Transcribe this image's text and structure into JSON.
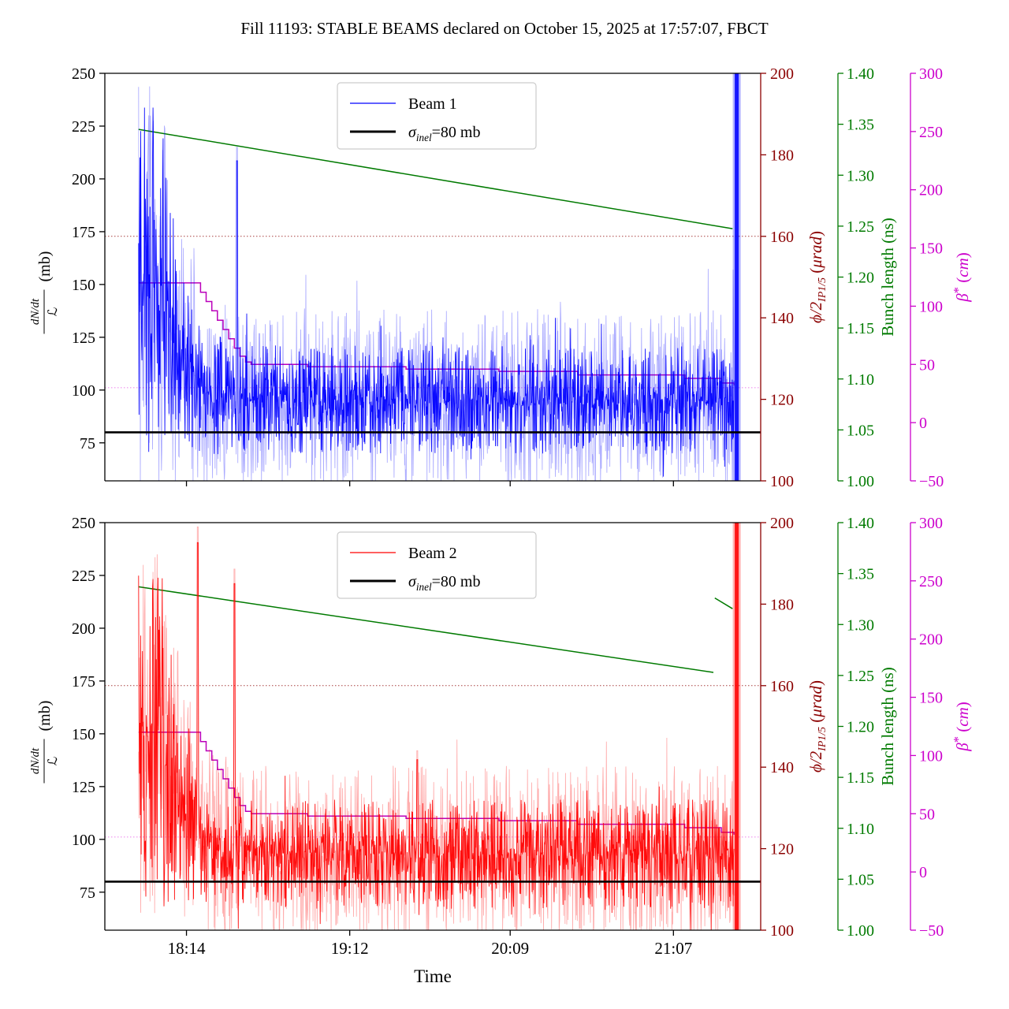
{
  "title": "Fill 11193: STABLE BEAMS declared on October 15, 2025 at 17:57:07, FBCT",
  "xlabel": "Time",
  "colors": {
    "beam1": "#0000ff",
    "beam2": "#ff0000",
    "sigma": "#000000",
    "phi_axis": "#8b0000",
    "bunch_axis": "#007a00",
    "beta_axis": "#cc00cc"
  },
  "chart_data": [
    {
      "type": "line",
      "name": "beam1-panel",
      "x_axis": {
        "start_time": "17:45",
        "lim_minutes": [
          0,
          233
        ],
        "ticks": [
          {
            "t": 29,
            "label": "18:14"
          },
          {
            "t": 87,
            "label": "19:12"
          },
          {
            "t": 144,
            "label": "20:09"
          },
          {
            "t": 202,
            "label": "21:07"
          }
        ],
        "show_tick_labels": false
      },
      "left_axis": {
        "lim": [
          57,
          250
        ],
        "ticks": [
          {
            "v": 75,
            "label": "75"
          },
          {
            "v": 100,
            "label": "100"
          },
          {
            "v": 125,
            "label": "125"
          },
          {
            "v": 150,
            "label": "150"
          },
          {
            "v": 175,
            "label": "175"
          },
          {
            "v": 200,
            "label": "200"
          },
          {
            "v": 225,
            "label": "225"
          },
          {
            "v": 250,
            "label": "250"
          }
        ],
        "label": {
          "numerator": "dN/dt",
          "denominator": "ℒ",
          "unit": "(mb)"
        }
      },
      "phi_axis": {
        "lim": [
          100,
          200
        ],
        "color": "#8b0000",
        "ticks": [
          {
            "v": 100,
            "label": "100"
          },
          {
            "v": 120,
            "label": "120"
          },
          {
            "v": 140,
            "label": "140"
          },
          {
            "v": 160,
            "label": "160"
          },
          {
            "v": 180,
            "label": "180"
          },
          {
            "v": 200,
            "label": "200"
          }
        ],
        "label_parts": [
          [
            "ϕ/2",
            "i"
          ],
          [
            "IP1/5",
            "sub"
          ],
          [
            " (",
            "n"
          ],
          [
            "μrad",
            "i"
          ],
          [
            ")",
            "n"
          ]
        ],
        "crossing_angle": 160
      },
      "bunch_axis": {
        "lim": [
          1.0,
          1.4
        ],
        "color": "#007a00",
        "ticks": [
          {
            "v": 1.0,
            "label": "1.00"
          },
          {
            "v": 1.05,
            "label": "1.05"
          },
          {
            "v": 1.1,
            "label": "1.10"
          },
          {
            "v": 1.15,
            "label": "1.15"
          },
          {
            "v": 1.2,
            "label": "1.20"
          },
          {
            "v": 1.25,
            "label": "1.25"
          },
          {
            "v": 1.3,
            "label": "1.30"
          },
          {
            "v": 1.35,
            "label": "1.35"
          },
          {
            "v": 1.4,
            "label": "1.40"
          }
        ],
        "label_parts": [
          [
            "Bunch length (ns)",
            "n"
          ]
        ],
        "segments": [
          [
            [
              12,
              1.345
            ],
            [
              223,
              1.2475
            ]
          ]
        ]
      },
      "beta_axis": {
        "lim": [
          -50,
          300
        ],
        "color": "#cc00cc",
        "dotted_color": "#ef8fef",
        "ticks": [
          {
            "v": -50,
            "label": "−50"
          },
          {
            "v": 0,
            "label": "0"
          },
          {
            "v": 50,
            "label": "50"
          },
          {
            "v": 100,
            "label": "100"
          },
          {
            "v": 150,
            "label": "150"
          },
          {
            "v": 200,
            "label": "200"
          },
          {
            "v": 250,
            "label": "250"
          },
          {
            "v": 300,
            "label": "300"
          }
        ],
        "label_parts": [
          [
            "β",
            "i"
          ],
          [
            "*",
            "sup"
          ],
          [
            " (",
            "n"
          ],
          [
            "cm",
            "i"
          ],
          [
            ")",
            "n"
          ]
        ],
        "leveling_target": 30,
        "steps": [
          [
            12,
            120
          ],
          [
            32,
            120
          ],
          [
            34,
            112
          ],
          [
            36,
            104
          ],
          [
            38,
            96
          ],
          [
            40,
            88
          ],
          [
            42,
            80
          ],
          [
            44,
            72
          ],
          [
            46,
            64
          ],
          [
            48,
            57
          ],
          [
            50,
            52
          ],
          [
            52,
            50
          ],
          [
            70,
            50
          ],
          [
            72,
            48
          ],
          [
            105,
            48
          ],
          [
            107,
            46
          ],
          [
            138,
            46
          ],
          [
            140,
            44
          ],
          [
            166,
            44
          ],
          [
            168,
            41
          ],
          [
            204,
            41
          ],
          [
            206,
            38
          ],
          [
            217,
            38
          ],
          [
            219,
            34
          ],
          [
            223.5,
            32
          ]
        ]
      },
      "sigma_line": {
        "value": 80,
        "color": "#000000"
      },
      "beam": {
        "name": "Beam 1",
        "color": "#0000ff",
        "seed": 11193,
        "t_range": [
          12,
          223.6
        ],
        "envelope": [
          [
            12,
            152,
            100,
            85
          ],
          [
            20,
            150,
            100,
            82
          ],
          [
            24,
            128,
            72,
            55
          ],
          [
            30,
            110,
            55,
            42
          ],
          [
            36,
            98,
            46,
            30
          ],
          [
            50,
            96,
            43,
            26
          ],
          [
            223.6,
            95,
            43,
            25
          ]
        ],
        "spikes": [
          [
            47,
            215
          ]
        ],
        "end_bar": {
          "t": 224.5,
          "half_width_min": 0.7
        }
      },
      "legend": [
        {
          "kind": "beam",
          "label": "Beam 1"
        },
        {
          "kind": "sigma",
          "parts": [
            [
              "σ",
              "i"
            ],
            [
              "inel",
              "sub"
            ],
            [
              "=80 mb",
              "n"
            ]
          ]
        }
      ]
    },
    {
      "type": "line",
      "name": "beam2-panel",
      "x_axis": {
        "start_time": "17:45",
        "lim_minutes": [
          0,
          233
        ],
        "ticks": [
          {
            "t": 29,
            "label": "18:14"
          },
          {
            "t": 87,
            "label": "19:12"
          },
          {
            "t": 144,
            "label": "20:09"
          },
          {
            "t": 202,
            "label": "21:07"
          }
        ],
        "show_tick_labels": true
      },
      "left_axis": {
        "lim": [
          57,
          250
        ],
        "ticks": [
          {
            "v": 75,
            "label": "75"
          },
          {
            "v": 100,
            "label": "100"
          },
          {
            "v": 125,
            "label": "125"
          },
          {
            "v": 150,
            "label": "150"
          },
          {
            "v": 175,
            "label": "175"
          },
          {
            "v": 200,
            "label": "200"
          },
          {
            "v": 225,
            "label": "225"
          },
          {
            "v": 250,
            "label": "250"
          }
        ],
        "label": {
          "numerator": "dN/dt",
          "denominator": "ℒ",
          "unit": "(mb)"
        }
      },
      "phi_axis": {
        "lim": [
          100,
          200
        ],
        "color": "#8b0000",
        "ticks": [
          {
            "v": 100,
            "label": "100"
          },
          {
            "v": 120,
            "label": "120"
          },
          {
            "v": 140,
            "label": "140"
          },
          {
            "v": 160,
            "label": "160"
          },
          {
            "v": 180,
            "label": "180"
          },
          {
            "v": 200,
            "label": "200"
          }
        ],
        "label_parts": [
          [
            "ϕ/2",
            "i"
          ],
          [
            "IP1/5",
            "sub"
          ],
          [
            " (",
            "n"
          ],
          [
            "μrad",
            "i"
          ],
          [
            ")",
            "n"
          ]
        ],
        "crossing_angle": 160
      },
      "bunch_axis": {
        "lim": [
          1.0,
          1.4
        ],
        "color": "#007a00",
        "ticks": [
          {
            "v": 1.0,
            "label": "1.00"
          },
          {
            "v": 1.05,
            "label": "1.05"
          },
          {
            "v": 1.1,
            "label": "1.10"
          },
          {
            "v": 1.15,
            "label": "1.15"
          },
          {
            "v": 1.2,
            "label": "1.20"
          },
          {
            "v": 1.25,
            "label": "1.25"
          },
          {
            "v": 1.3,
            "label": "1.30"
          },
          {
            "v": 1.35,
            "label": "1.35"
          },
          {
            "v": 1.4,
            "label": "1.40"
          }
        ],
        "label_parts": [
          [
            "Bunch length (ns)",
            "n"
          ]
        ],
        "segments": [
          [
            [
              12,
              1.337
            ],
            [
              216.2,
              1.253
            ]
          ],
          [
            [
              216.7,
              1.326
            ],
            [
              223,
              1.3155
            ]
          ]
        ]
      },
      "beta_axis": {
        "lim": [
          -50,
          300
        ],
        "color": "#cc00cc",
        "dotted_color": "#ef8fef",
        "ticks": [
          {
            "v": -50,
            "label": "−50"
          },
          {
            "v": 0,
            "label": "0"
          },
          {
            "v": 50,
            "label": "50"
          },
          {
            "v": 100,
            "label": "100"
          },
          {
            "v": 150,
            "label": "150"
          },
          {
            "v": 200,
            "label": "200"
          },
          {
            "v": 250,
            "label": "250"
          },
          {
            "v": 300,
            "label": "300"
          }
        ],
        "label_parts": [
          [
            "β",
            "i"
          ],
          [
            "*",
            "sup"
          ],
          [
            " (",
            "n"
          ],
          [
            "cm",
            "i"
          ],
          [
            ")",
            "n"
          ]
        ],
        "leveling_target": 30,
        "steps": [
          [
            12,
            120
          ],
          [
            32,
            120
          ],
          [
            34,
            112
          ],
          [
            36,
            104
          ],
          [
            38,
            96
          ],
          [
            40,
            88
          ],
          [
            42,
            80
          ],
          [
            44,
            72
          ],
          [
            46,
            64
          ],
          [
            48,
            57
          ],
          [
            50,
            52
          ],
          [
            52,
            50
          ],
          [
            70,
            50
          ],
          [
            72,
            48
          ],
          [
            105,
            48
          ],
          [
            107,
            46
          ],
          [
            138,
            46
          ],
          [
            140,
            44
          ],
          [
            166,
            44
          ],
          [
            168,
            41
          ],
          [
            204,
            41
          ],
          [
            206,
            38
          ],
          [
            217,
            38
          ],
          [
            219,
            34
          ],
          [
            223.5,
            32
          ]
        ]
      },
      "sigma_line": {
        "value": 80,
        "color": "#000000"
      },
      "beam": {
        "name": "Beam 2",
        "color": "#ff0000",
        "seed": 21193,
        "t_range": [
          12,
          223.6
        ],
        "envelope": [
          [
            12,
            150,
            100,
            85
          ],
          [
            20,
            148,
            100,
            82
          ],
          [
            26,
            122,
            68,
            50
          ],
          [
            32,
            104,
            52,
            38
          ],
          [
            38,
            96,
            45,
            30
          ],
          [
            60,
            93,
            42,
            26
          ],
          [
            223.6,
            93,
            42,
            26
          ]
        ],
        "spikes": [
          [
            33,
            248
          ],
          [
            46,
            228
          ],
          [
            111,
            142
          ]
        ],
        "end_bar": {
          "t": 224.5,
          "half_width_min": 0.7
        }
      },
      "legend": [
        {
          "kind": "beam",
          "label": "Beam 2"
        },
        {
          "kind": "sigma",
          "parts": [
            [
              "σ",
              "i"
            ],
            [
              "inel",
              "sub"
            ],
            [
              "=80 mb",
              "n"
            ]
          ]
        }
      ]
    }
  ]
}
